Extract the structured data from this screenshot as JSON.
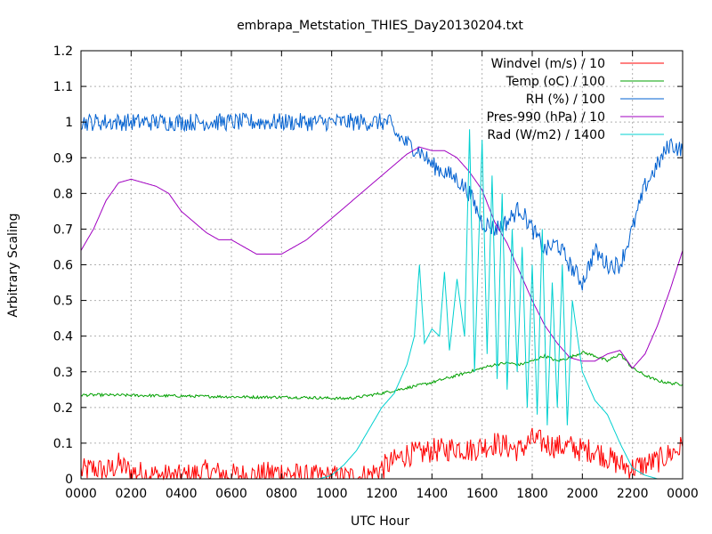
{
  "chart_data": {
    "type": "line",
    "title": "embrapa_Metstation_THIES_Day20130204.txt",
    "xlabel": "UTC Hour",
    "ylabel": "Arbitrary Scaling",
    "xlim": [
      0,
      24
    ],
    "ylim": [
      0,
      1.2
    ],
    "grid": true,
    "legend_position": "top-right",
    "x_tick_labels": [
      "0000",
      "0200",
      "0400",
      "0600",
      "0800",
      "1000",
      "1200",
      "1400",
      "1600",
      "1800",
      "2000",
      "2200",
      "0000"
    ],
    "y_tick_labels": [
      "0",
      "0.1",
      "0.2",
      "0.3",
      "0.4",
      "0.5",
      "0.6",
      "0.7",
      "0.8",
      "0.9",
      "1",
      "1.1",
      "1.2"
    ],
    "series": [
      {
        "name": "Windvel (m/s) / 10",
        "color": "#ff0000",
        "x": [
          0,
          0.5,
          1,
          1.5,
          2,
          3,
          4,
          5,
          6,
          7,
          8,
          9,
          10,
          11,
          11.5,
          12,
          12.5,
          13,
          13.5,
          14,
          14.5,
          15,
          15.5,
          16,
          16.5,
          17,
          17.5,
          18,
          18.5,
          19,
          19.5,
          20,
          20.5,
          21,
          21.5,
          22,
          22.5,
          23,
          23.5,
          24
        ],
        "y": [
          0.02,
          0.03,
          0.02,
          0.04,
          0.02,
          0.01,
          0.005,
          0.02,
          0.01,
          0.01,
          0.02,
          0.005,
          0.005,
          0.005,
          0.01,
          0.03,
          0.05,
          0.07,
          0.07,
          0.08,
          0.08,
          0.09,
          0.08,
          0.09,
          0.1,
          0.09,
          0.08,
          0.11,
          0.1,
          0.09,
          0.09,
          0.08,
          0.08,
          0.06,
          0.04,
          0.03,
          0.04,
          0.05,
          0.07,
          0.09
        ],
        "noise": 0.035
      },
      {
        "name": "Temp (oC) / 100",
        "color": "#00a000",
        "x": [
          0,
          1,
          2,
          3,
          4,
          5,
          6,
          7,
          8,
          9,
          10,
          10.5,
          11,
          12,
          13,
          14,
          15,
          16,
          16.5,
          17,
          17.5,
          18,
          18.5,
          19,
          19.5,
          20,
          20.5,
          21,
          21.5,
          22,
          22.5,
          23,
          23.5,
          24
        ],
        "y": [
          0.235,
          0.235,
          0.234,
          0.233,
          0.232,
          0.231,
          0.23,
          0.229,
          0.229,
          0.228,
          0.226,
          0.225,
          0.228,
          0.24,
          0.255,
          0.27,
          0.29,
          0.31,
          0.32,
          0.325,
          0.32,
          0.33,
          0.345,
          0.33,
          0.34,
          0.355,
          0.345,
          0.33,
          0.35,
          0.31,
          0.29,
          0.275,
          0.268,
          0.265
        ],
        "noise": 0.004
      },
      {
        "name": "RH (%) / 100",
        "color": "#0060d0",
        "x": [
          0,
          2,
          4,
          6,
          8,
          10,
          12,
          12.3,
          12.5,
          13,
          13.5,
          14,
          14.5,
          15,
          15.5,
          16,
          16.5,
          17,
          17.5,
          18,
          18.5,
          19,
          19.5,
          20,
          20.5,
          21,
          21.5,
          22,
          22.5,
          23,
          23.5,
          24
        ],
        "y": [
          1,
          1,
          1,
          1,
          1,
          1,
          1,
          1,
          0.97,
          0.94,
          0.92,
          0.88,
          0.86,
          0.84,
          0.8,
          0.72,
          0.7,
          0.72,
          0.76,
          0.7,
          0.64,
          0.66,
          0.6,
          0.55,
          0.64,
          0.6,
          0.6,
          0.7,
          0.82,
          0.88,
          0.94,
          0.92
        ],
        "noise": 0.025
      },
      {
        "name": "Pres-990 (hPa) / 10",
        "color": "#a000c0",
        "x": [
          0,
          0.5,
          1,
          1.5,
          2,
          2.5,
          3,
          3.5,
          4,
          4.5,
          5,
          5.5,
          6,
          6.5,
          7,
          7.5,
          8,
          8.5,
          9,
          9.5,
          10,
          10.5,
          11,
          11.5,
          12,
          12.5,
          13,
          13.5,
          14,
          14.5,
          15,
          15.5,
          16,
          16.5,
          17,
          17.5,
          18,
          18.5,
          19,
          19.5,
          20,
          20.5,
          21,
          21.5,
          22,
          22.5,
          23,
          23.5,
          24
        ],
        "y": [
          0.64,
          0.7,
          0.78,
          0.83,
          0.84,
          0.83,
          0.82,
          0.8,
          0.75,
          0.72,
          0.69,
          0.67,
          0.67,
          0.65,
          0.63,
          0.63,
          0.63,
          0.65,
          0.67,
          0.7,
          0.73,
          0.76,
          0.79,
          0.82,
          0.85,
          0.88,
          0.91,
          0.93,
          0.92,
          0.92,
          0.9,
          0.86,
          0.81,
          0.72,
          0.66,
          0.58,
          0.5,
          0.43,
          0.38,
          0.34,
          0.33,
          0.33,
          0.35,
          0.36,
          0.31,
          0.35,
          0.43,
          0.53,
          0.64
        ],
        "noise": 0.0
      },
      {
        "name": "Rad (W/m2) / 1400",
        "color": "#00d0d0",
        "x": [
          0,
          9.5,
          10,
          10.5,
          11,
          11.5,
          12,
          12.5,
          13,
          13.3,
          13.5,
          13.7,
          14,
          14.3,
          14.5,
          14.7,
          15,
          15.3,
          15.5,
          15.7,
          16,
          16.2,
          16.4,
          16.6,
          16.8,
          17,
          17.2,
          17.4,
          17.6,
          17.8,
          18,
          18.2,
          18.4,
          18.6,
          18.8,
          19,
          19.2,
          19.4,
          19.6,
          20,
          20.5,
          21,
          21.5,
          22,
          22.5,
          23,
          24
        ],
        "y": [
          0,
          0,
          0.01,
          0.04,
          0.08,
          0.14,
          0.2,
          0.24,
          0.32,
          0.4,
          0.6,
          0.38,
          0.42,
          0.4,
          0.58,
          0.36,
          0.56,
          0.4,
          0.98,
          0.3,
          0.95,
          0.35,
          0.85,
          0.28,
          0.8,
          0.25,
          0.7,
          0.3,
          0.65,
          0.2,
          0.6,
          0.18,
          0.7,
          0.15,
          0.55,
          0.2,
          0.6,
          0.15,
          0.5,
          0.3,
          0.22,
          0.18,
          0.1,
          0.03,
          0.01,
          0,
          0
        ],
        "noise": 0.0
      }
    ]
  }
}
